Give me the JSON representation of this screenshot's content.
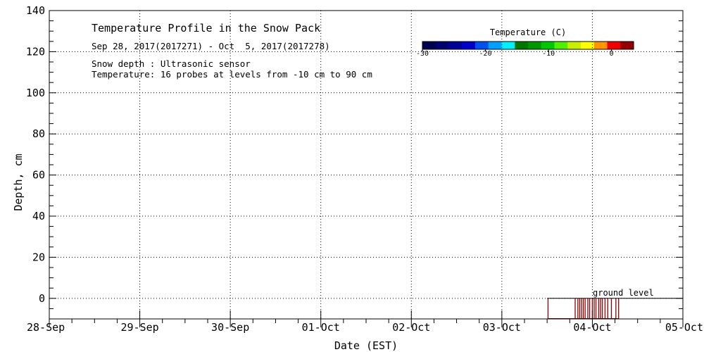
{
  "chart_data": {
    "type": "area",
    "title": "Temperature Profile in the Snow Pack",
    "subtitle": "Sep 28, 2017(2017271) - Oct  5, 2017(2017278)",
    "notes": [
      "Snow depth : Ultrasonic sensor",
      "Temperature: 16 probes at levels from -10 cm to 90 cm"
    ],
    "xlabel": "Date (EST)",
    "ylabel": "Depth, cm",
    "x_categories": [
      "28-Sep",
      "29-Sep",
      "30-Sep",
      "01-Oct",
      "02-Oct",
      "03-Oct",
      "04-Oct",
      "05-Oct"
    ],
    "x_range_days": [
      0,
      7
    ],
    "ylim": [
      -10,
      140
    ],
    "y_ticks": [
      0,
      20,
      40,
      60,
      80,
      100,
      120,
      140
    ],
    "grid": true,
    "ground_level": {
      "label": "ground level",
      "depth": 0,
      "x_start_day": 5.5,
      "x_end_day": 7.0
    },
    "snow_depth_series": {
      "name": "Snow depth",
      "color": "#8b0000",
      "spikes_day": [
        5.51,
        5.81,
        5.84,
        5.86,
        5.88,
        5.9,
        5.92,
        5.95,
        5.97,
        6.0,
        6.02,
        6.04,
        6.07,
        6.09,
        6.11,
        6.14,
        6.17,
        6.21,
        6.26,
        6.29
      ],
      "spike_depth": 0,
      "min_depth": -10
    },
    "colorbar": {
      "label": "Temperature (C)",
      "ticks": [
        -30,
        -20,
        -10,
        0
      ],
      "range": [
        -30,
        3.5
      ],
      "colors": [
        "#000050",
        "#00006e",
        "#000096",
        "#0000c8",
        "#0050f0",
        "#00a0ff",
        "#00f0ff",
        "#007800",
        "#009600",
        "#00c800",
        "#50f000",
        "#c8f000",
        "#ffff00",
        "#ff9600",
        "#f00000",
        "#960000"
      ]
    }
  }
}
